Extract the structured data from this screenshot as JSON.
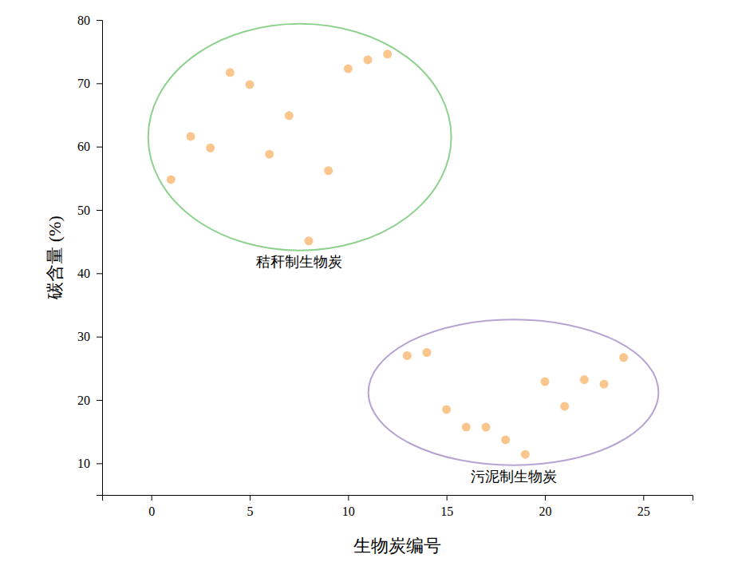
{
  "chart_data": {
    "type": "scatter",
    "x_label": "生物炭编号",
    "y_label": "碳含量 (%)",
    "x": [
      1,
      2,
      3,
      4,
      5,
      6,
      7,
      8,
      9,
      10,
      11,
      12,
      13,
      14,
      15,
      16,
      17,
      18,
      19,
      20,
      21,
      22,
      23,
      24
    ],
    "values": [
      54.8,
      61.6,
      59.8,
      71.7,
      69.8,
      58.8,
      64.9,
      45.1,
      56.2,
      72.3,
      73.7,
      74.6,
      27.0,
      27.5,
      18.5,
      15.7,
      15.7,
      13.7,
      11.4,
      22.9,
      19.0,
      23.2,
      22.5,
      26.7
    ],
    "color": "#fbc68e",
    "marker": "circle",
    "xlim": [
      -2.5,
      27.5
    ],
    "xticks": [
      0,
      5,
      10,
      15,
      20,
      25
    ],
    "ylim": [
      5,
      80
    ],
    "yticks": [
      10,
      20,
      30,
      40,
      50,
      60,
      70,
      80
    ],
    "grid": false,
    "annotations": [
      {
        "text": "秸秆制生物炭",
        "x": 7.5,
        "y": 41.6,
        "color": "#8fd18f",
        "ellipse": {
          "cx": 7.54,
          "cy": 61.5,
          "rx": 7.7,
          "ry": 17.9
        }
      },
      {
        "text": "污泥制生物炭",
        "x": 18.4,
        "y": 7.7,
        "color": "#b5a4d2",
        "ellipse": {
          "cx": 18.4,
          "cy": 21.2,
          "rx": 7.37,
          "ry": 11.5
        }
      }
    ]
  }
}
